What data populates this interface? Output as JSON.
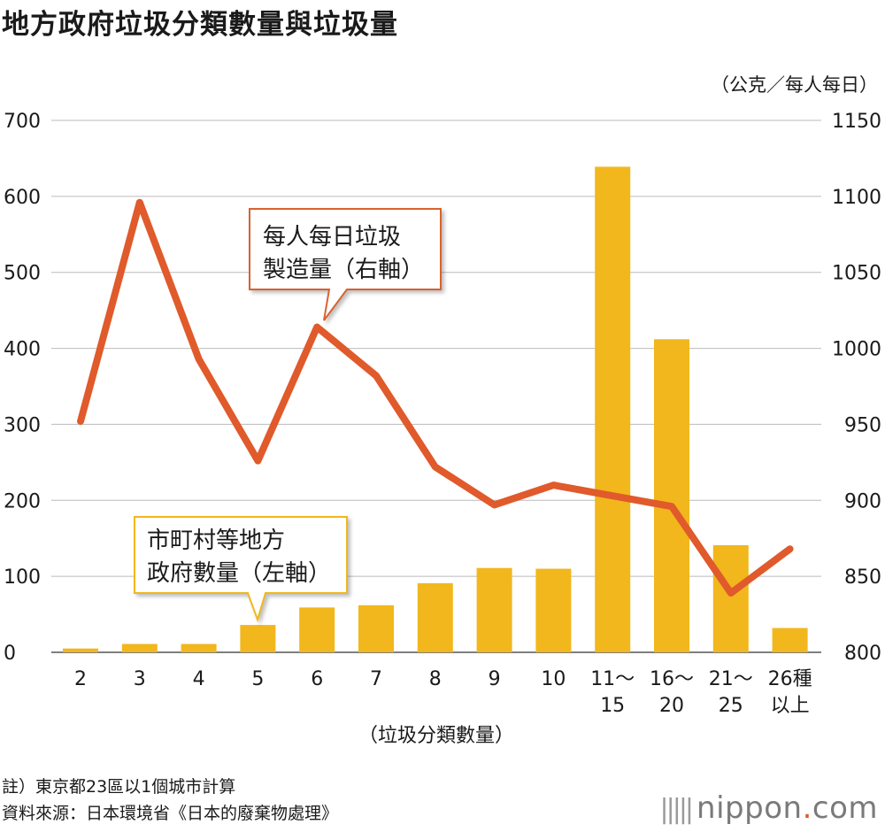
{
  "title": "地方政府垃圾分類數量與垃圾量",
  "unit_label": "（公克／每人每日）",
  "xlabel": "（垃圾分類數量）",
  "callouts": {
    "line": [
      "每人每日垃圾",
      "製造量（右軸）"
    ],
    "bar": [
      "市町村等地方",
      "政府數量（左軸）"
    ]
  },
  "notes": {
    "note1": "註）東京都23區以1個城市計算",
    "note2": "資料來源：日本環境省《日本的廢棄物處理》"
  },
  "brand": {
    "bars": "|||||",
    "name": "nippon",
    "dot": ".",
    "tld": "com"
  },
  "colors": {
    "bar": "#f1b71c",
    "line": "#e05a2b",
    "callout_border": "#d9622f",
    "callout_border_bar": "#f1b71c",
    "grid": "#bbbbbb"
  },
  "chart_data": {
    "type": "bar",
    "categories": [
      "2",
      "3",
      "4",
      "5",
      "6",
      "7",
      "8",
      "9",
      "10",
      "11～\n15",
      "16～\n20",
      "21～\n25",
      "26種\n以上"
    ],
    "y_left": {
      "ylim": [
        0,
        700
      ],
      "ticks": [
        0,
        100,
        200,
        300,
        400,
        500,
        600,
        700
      ]
    },
    "y_right": {
      "ylim": [
        800,
        1150
      ],
      "ticks": [
        800,
        850,
        900,
        950,
        1000,
        1050,
        1100,
        1150
      ]
    },
    "series": [
      {
        "name": "市町村等地方政府數量（左軸）",
        "type": "bar",
        "axis": "left",
        "values": [
          5,
          11,
          11,
          36,
          59,
          62,
          91,
          111,
          110,
          639,
          412,
          141,
          32
        ]
      },
      {
        "name": "每人每日垃圾製造量（右軸）",
        "type": "line",
        "axis": "right",
        "values": [
          952,
          1096,
          993,
          926,
          1014,
          982,
          922,
          897,
          910,
          903,
          896,
          839,
          868
        ]
      }
    ],
    "grid": true
  }
}
